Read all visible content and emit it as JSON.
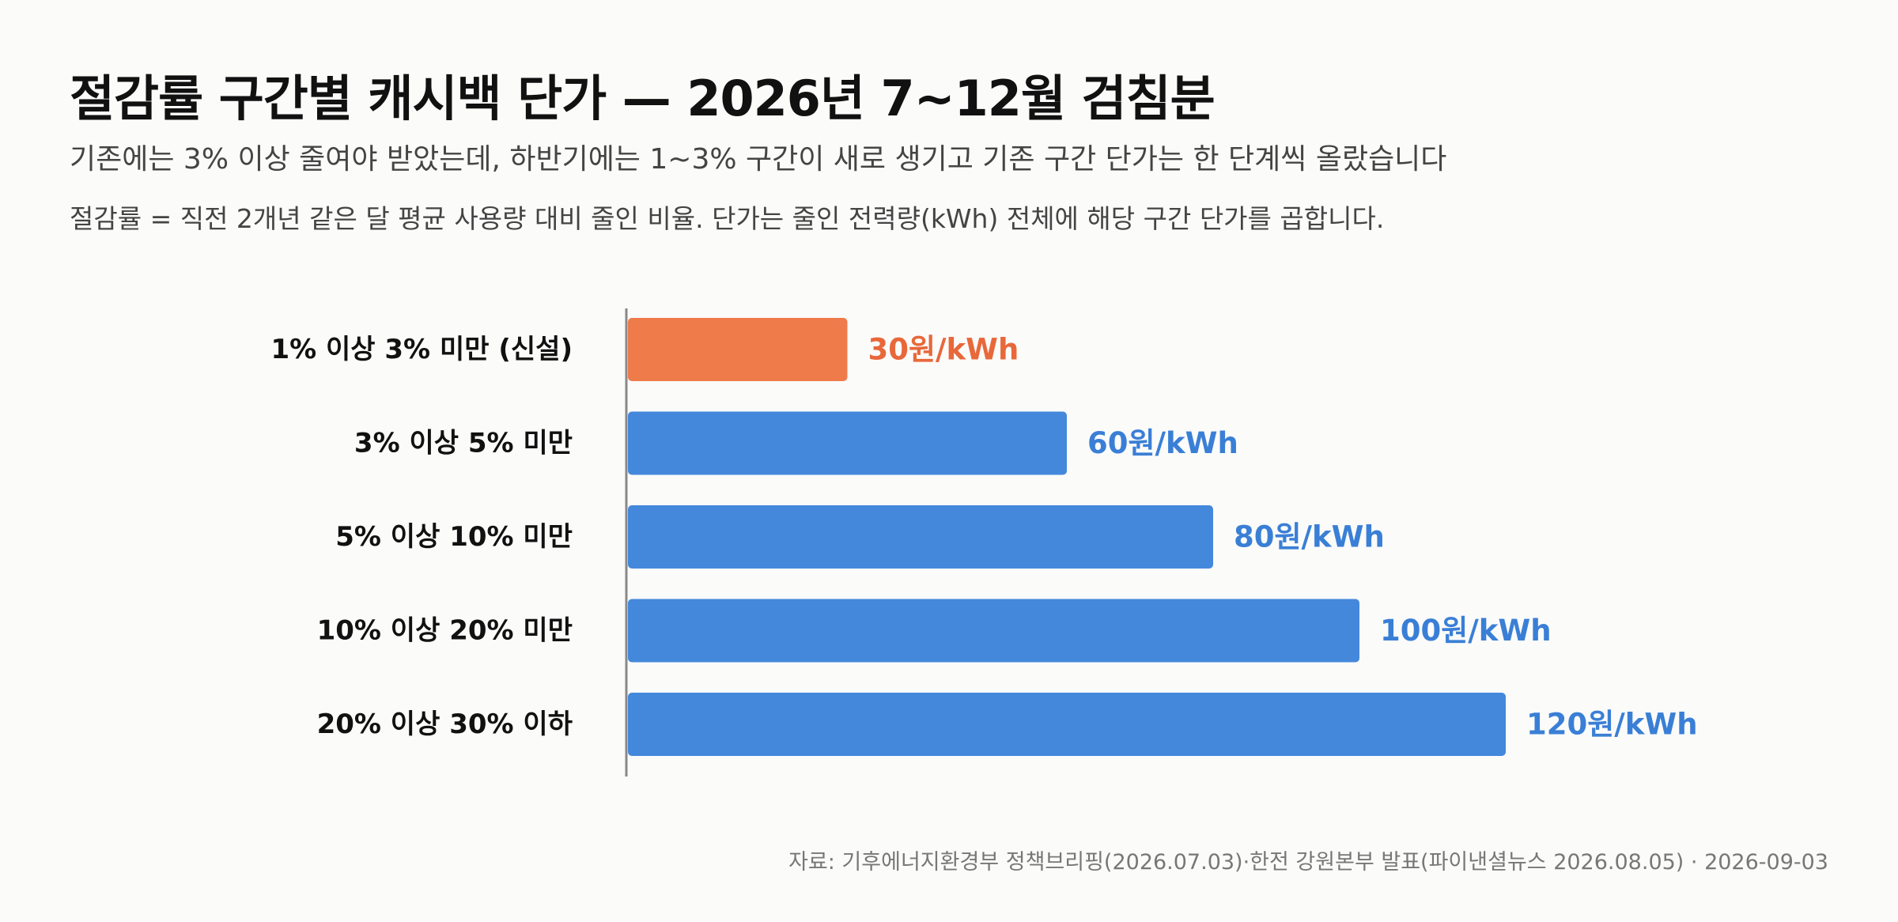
{
  "title": "절감률 구간별 캐시백 단가 — 2026년 7~12월 검침분",
  "subtitle": "기존에는 3% 이상 줄여야 받았는데, 하반기에는 1~3% 구간이 새로 생기고 기존 구간 단가는 한 단계씩 올랐습니다",
  "note": "절감률 = 직전 2개년 같은 달 평균 사용량 대비 줄인 비율. 단가는 줄인 전력량(kWh) 전체에 해당 구간 단가를 곱합니다.",
  "source": "자료: 기후에너지환경부 정책브리핑(2026.07.03)·한전 강원본부 발표(파이낸셜뉴스 2026.08.05) · 2026-09-03",
  "colors": {
    "highlight": "#ef7b4b",
    "highlight_text": "#e8683a",
    "bar": "#4488dc",
    "bar_text": "#3a7fd6",
    "axis": "#888888"
  },
  "chart_data": {
    "type": "bar",
    "orientation": "horizontal",
    "categories": [
      "1% 이상 3% 미만 (신설)",
      "3% 이상 5% 미만",
      "5% 이상 10% 미만",
      "10% 이상 20% 미만",
      "20% 이상 30% 이하"
    ],
    "values": [
      30,
      60,
      80,
      100,
      120
    ],
    "value_labels": [
      "30원/kWh",
      "60원/kWh",
      "80원/kWh",
      "100원/kWh",
      "120원/kWh"
    ],
    "highlight_index": 0,
    "xlim": [
      0,
      120
    ],
    "grid": false,
    "xlabel": "",
    "ylabel": ""
  }
}
